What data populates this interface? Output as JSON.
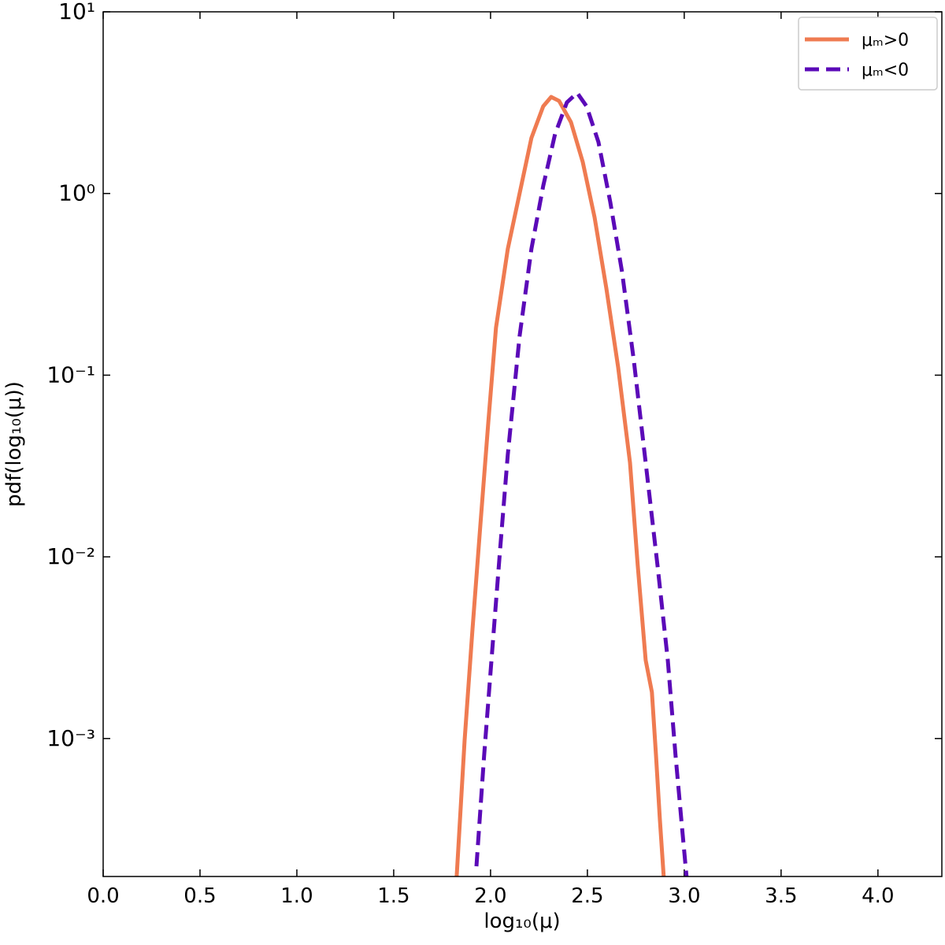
{
  "chart_data": {
    "type": "line",
    "xlabel": "log₁₀(μ)",
    "ylabel": "pdf(log₁₀(μ))",
    "xlim": [
      0,
      4.33
    ],
    "ylim": [
      0.000174,
      10
    ],
    "yscale": "log",
    "xticks": [
      {
        "value": 0,
        "label": "0.0"
      },
      {
        "value": 0.5,
        "label": "0.5"
      },
      {
        "value": 1,
        "label": "1.0"
      },
      {
        "value": 1.5,
        "label": "1.5"
      },
      {
        "value": 2,
        "label": "2.0"
      },
      {
        "value": 2.5,
        "label": "2.5"
      },
      {
        "value": 3,
        "label": "3.0"
      },
      {
        "value": 3.5,
        "label": "3.5"
      },
      {
        "value": 4,
        "label": "4.0"
      }
    ],
    "yticks": [
      {
        "value": 0.001,
        "label": "10⁻³"
      },
      {
        "value": 0.01,
        "label": "10⁻²"
      },
      {
        "value": 0.1,
        "label": "10⁻¹"
      },
      {
        "value": 1,
        "label": "10⁰"
      },
      {
        "value": 10,
        "label": "10¹"
      }
    ],
    "legend": "upper right",
    "series": [
      {
        "name": "μₘ>0",
        "color": "#ef7b51",
        "dash": "solid",
        "x": [
          1.825,
          1.866,
          1.907,
          1.947,
          1.988,
          2.028,
          2.089,
          2.15,
          2.211,
          2.272,
          2.313,
          2.354,
          2.415,
          2.476,
          2.537,
          2.598,
          2.659,
          2.72,
          2.76,
          2.801,
          2.833,
          2.854,
          2.874,
          2.894
        ],
        "values": [
          0.000174,
          0.00098,
          0.004,
          0.0148,
          0.0545,
          0.182,
          0.495,
          1.0,
          2.02,
          3.02,
          3.4,
          3.23,
          2.47,
          1.49,
          0.74,
          0.3,
          0.11,
          0.033,
          0.009,
          0.0027,
          0.0018,
          0.00081,
          0.00036,
          0.000174
        ]
      },
      {
        "name": "μₘ<0",
        "color": "#5b0ab8",
        "dash": "dashed",
        "x": [
          1.927,
          1.967,
          2.008,
          2.049,
          2.089,
          2.15,
          2.211,
          2.272,
          2.333,
          2.394,
          2.447,
          2.496,
          2.557,
          2.618,
          2.679,
          2.74,
          2.801,
          2.862,
          2.915,
          2.955,
          2.988,
          3.012
        ],
        "values": [
          0.000198,
          0.00081,
          0.003,
          0.0109,
          0.0365,
          0.164,
          0.495,
          1.1,
          2.12,
          3.17,
          3.58,
          3.02,
          1.92,
          0.9,
          0.37,
          0.12,
          0.033,
          0.009,
          0.0027,
          0.00081,
          0.00033,
          0.000174
        ]
      }
    ]
  }
}
